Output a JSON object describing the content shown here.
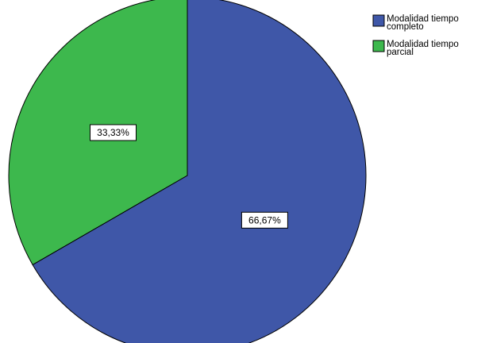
{
  "chart_data": {
    "type": "pie",
    "title": "",
    "categories": [
      "Modalidad tiempo completo",
      "Modalidad tiempo parcial"
    ],
    "values": [
      66.67,
      33.33
    ],
    "data_labels": [
      "66,67%",
      "33,33%"
    ],
    "colors": [
      "#3f57a8",
      "#3db84d"
    ],
    "legend": {
      "placement": "top-right",
      "entries": [
        {
          "lines": [
            "Modalidad tiempo",
            "completo"
          ],
          "color": "#3f57a8"
        },
        {
          "lines": [
            "Modalidad tiempo",
            "parcial"
          ],
          "color": "#3db84d"
        }
      ]
    }
  }
}
